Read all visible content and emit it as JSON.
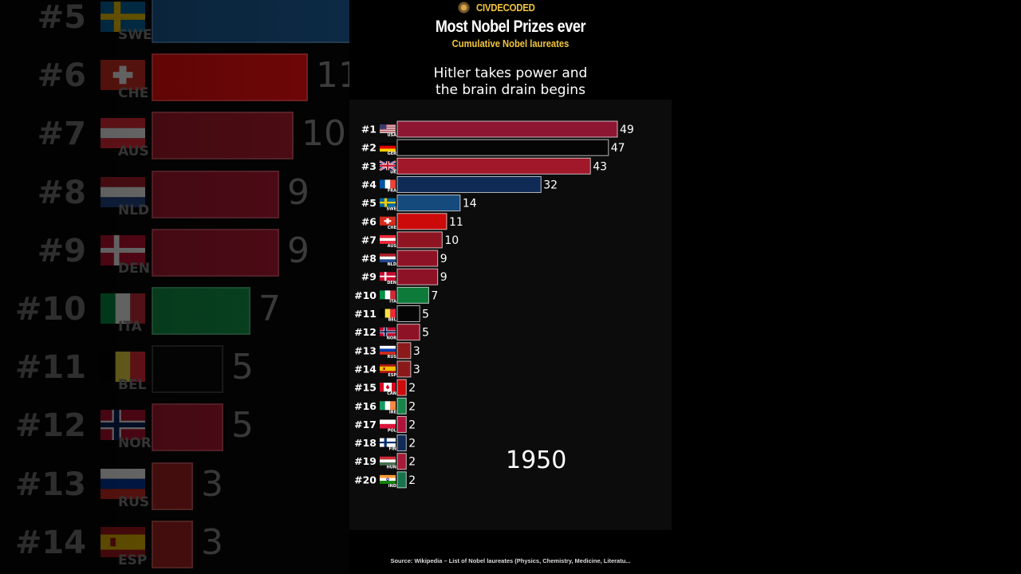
{
  "brand": "CIVDECODED",
  "title": "Most Nobel Prizes ever",
  "subtitle": "Cumulative Nobel laureates",
  "annotation_line1": "Hitler takes power and",
  "annotation_line2": "the brain drain begins",
  "year": "1950",
  "source": "Source: Wikipedia – List of Nobel laureates (Physics, Chemistry, Medicine, Literatu...",
  "chart_data": {
    "type": "bar",
    "orientation": "horizontal",
    "title": "Most Nobel Prizes ever",
    "subtitle": "Cumulative Nobel laureates",
    "year": "1950",
    "rows": [
      {
        "rank": "#1",
        "code": "USA",
        "value": 49,
        "color": "#8d1633",
        "flag": "usa"
      },
      {
        "rank": "#2",
        "code": "GER",
        "value": 47,
        "color": "#050505",
        "flag": "ger"
      },
      {
        "rank": "#3",
        "code": "UK",
        "value": 43,
        "color": "#a0182a",
        "flag": "uk"
      },
      {
        "rank": "#4",
        "code": "FRA",
        "value": 32,
        "color": "#0f2a55",
        "flag": "fra"
      },
      {
        "rank": "#5",
        "code": "SWE",
        "value": 14,
        "color": "#154a7c",
        "flag": "swe"
      },
      {
        "rank": "#6",
        "code": "CHE",
        "value": 11,
        "color": "#cc0a0a",
        "flag": "che"
      },
      {
        "rank": "#7",
        "code": "AUS",
        "value": 10,
        "color": "#8e1422",
        "flag": "aut"
      },
      {
        "rank": "#8",
        "code": "NLD",
        "value": 9,
        "color": "#8e1226",
        "flag": "nld"
      },
      {
        "rank": "#9",
        "code": "DEN",
        "value": 9,
        "color": "#8e1226",
        "flag": "den"
      },
      {
        "rank": "#10",
        "code": "ITA",
        "value": 7,
        "color": "#0d7a3a",
        "flag": "ita"
      },
      {
        "rank": "#11",
        "code": "BEL",
        "value": 5,
        "color": "#050505",
        "flag": "bel"
      },
      {
        "rank": "#12",
        "code": "NOR",
        "value": 5,
        "color": "#8e1226",
        "flag": "nor"
      },
      {
        "rank": "#13",
        "code": "RUS",
        "value": 3,
        "color": "#8a1a1a",
        "flag": "rus"
      },
      {
        "rank": "#14",
        "code": "ESP",
        "value": 3,
        "color": "#8a1a1a",
        "flag": "esp"
      },
      {
        "rank": "#15",
        "code": "CAN",
        "value": 2,
        "color": "#cc0a0a",
        "flag": "can"
      },
      {
        "rank": "#16",
        "code": "IRE",
        "value": 2,
        "color": "#17844a",
        "flag": "ire"
      },
      {
        "rank": "#17",
        "code": "POL",
        "value": 2,
        "color": "#b0123a",
        "flag": "pol"
      },
      {
        "rank": "#18",
        "code": "FIN",
        "value": 2,
        "color": "#0f2a55",
        "flag": "fin"
      },
      {
        "rank": "#19",
        "code": "HUN",
        "value": 2,
        "color": "#a51a36",
        "flag": "hun"
      },
      {
        "rank": "#20",
        "code": "IND",
        "value": 2,
        "color": "#17744a",
        "flag": "ind"
      }
    ],
    "background_rows": [
      {
        "rank": "#5",
        "code": "SWE",
        "value": "",
        "color": "#154a7c",
        "flag": "swe"
      },
      {
        "rank": "#6",
        "code": "CHE",
        "value": "11",
        "color": "#cc0a0a",
        "flag": "che"
      },
      {
        "rank": "#7",
        "code": "AUS",
        "value": "10",
        "color": "#8e1422",
        "flag": "aut"
      },
      {
        "rank": "#8",
        "code": "NLD",
        "value": "9",
        "color": "#8e1226",
        "flag": "nld"
      },
      {
        "rank": "#9",
        "code": "DEN",
        "value": "9",
        "color": "#8e1226",
        "flag": "den"
      },
      {
        "rank": "#10",
        "code": "ITA",
        "value": "7",
        "color": "#0d7a3a",
        "flag": "ita"
      },
      {
        "rank": "#11",
        "code": "BEL",
        "value": "5",
        "color": "#050505",
        "flag": "bel"
      },
      {
        "rank": "#12",
        "code": "NOR",
        "value": "5",
        "color": "#8e1226",
        "flag": "nor"
      },
      {
        "rank": "#13",
        "code": "RUS",
        "value": "3",
        "color": "#8a1a1a",
        "flag": "rus"
      },
      {
        "rank": "#14",
        "code": "ESP",
        "value": "3",
        "color": "#8a1a1a",
        "flag": "esp"
      }
    ]
  }
}
